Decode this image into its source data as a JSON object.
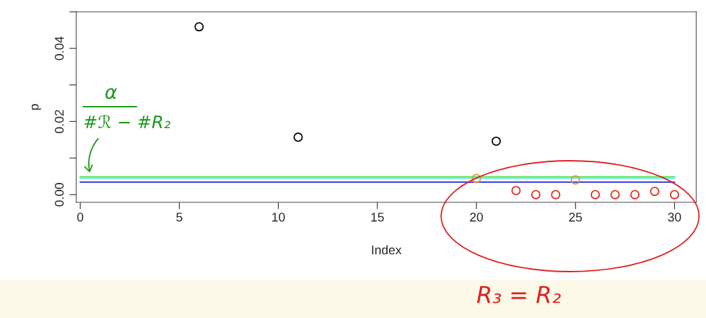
{
  "chart_data": {
    "type": "scatter",
    "xlabel": "Index",
    "ylabel": "p",
    "xlim": [
      -0.2,
      31.1
    ],
    "xticks": [
      0,
      5,
      10,
      15,
      20,
      25,
      30
    ],
    "ylim": [
      -0.0021,
      0.05
    ],
    "yticks": [
      {
        "value": 0,
        "label": "0.00"
      },
      {
        "value": 0.01,
        "label": null
      },
      0.02,
      {
        "value": 0.03,
        "label": null
      },
      0.04,
      {
        "value": 0.05,
        "label": null
      }
    ],
    "grid": false,
    "legend": false,
    "series": [
      {
        "marker": "circle",
        "color": "#000000",
        "x": [
          6,
          11,
          21
        ],
        "values": [
          0.0459,
          0.0157,
          0.0146
        ]
      },
      {
        "marker": "circle",
        "color": "#d9963a",
        "x": [
          20,
          25
        ],
        "values": [
          0.0044,
          0.004
        ]
      },
      {
        "marker": "circle",
        "color": "#e02a1e",
        "x": [
          22,
          23,
          24,
          26,
          27,
          28,
          29,
          30
        ],
        "values": [
          0.0011,
          0,
          0,
          0,
          0,
          0,
          0.0009,
          0
        ]
      },
      {
        "type": "line",
        "color": "#7ae87a",
        "x": [
          0,
          30
        ],
        "values": [
          0.0049,
          0.0049
        ]
      },
      {
        "type": "line",
        "color": "#6ee8e0",
        "x": [
          0,
          30
        ],
        "values": [
          0.0045,
          0.0045
        ]
      },
      {
        "type": "line",
        "color": "#4a4ae0",
        "x": [
          0,
          30
        ],
        "values": [
          0.0034,
          0.0034
        ]
      }
    ],
    "annotations": [
      "α",
      "#ℛ − #R₂",
      "R₃ = R₂"
    ]
  }
}
